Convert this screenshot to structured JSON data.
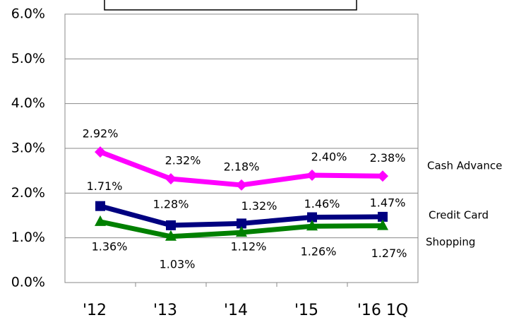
{
  "chart_data": {
    "type": "line",
    "categories": [
      "'12",
      "'13",
      "'14",
      "'15",
      "'16 1Q"
    ],
    "series": [
      {
        "name": "Cash Advance",
        "color": "#ff00ff",
        "marker": "diamond",
        "values": [
          2.92,
          2.32,
          2.18,
          2.4,
          2.38
        ],
        "value_labels": [
          "2.92%",
          "2.32%",
          "2.18%",
          "2.40%",
          "2.38%"
        ]
      },
      {
        "name": "Credit Card",
        "color": "#000080",
        "marker": "square",
        "values": [
          1.71,
          1.28,
          1.32,
          1.46,
          1.47
        ],
        "value_labels": [
          "1.71%",
          "1.28%",
          "1.32%",
          "1.46%",
          "1.47%"
        ]
      },
      {
        "name": "Shopping",
        "color": "#008000",
        "marker": "triangle",
        "values": [
          1.36,
          1.03,
          1.12,
          1.26,
          1.27
        ],
        "value_labels": [
          "1.36%",
          "1.03%",
          "1.12%",
          "1.26%",
          "1.27%"
        ]
      }
    ],
    "ylim": [
      0,
      6
    ],
    "yticks": [
      {
        "value": 0,
        "label": "0.0%"
      },
      {
        "value": 1,
        "label": "1.0%"
      },
      {
        "value": 2,
        "label": "2.0%"
      },
      {
        "value": 3,
        "label": "3.0%"
      },
      {
        "value": 4,
        "label": "4.0%"
      },
      {
        "value": 5,
        "label": "5.0%"
      },
      {
        "value": 6,
        "label": "6.0%"
      }
    ],
    "grid": true
  }
}
